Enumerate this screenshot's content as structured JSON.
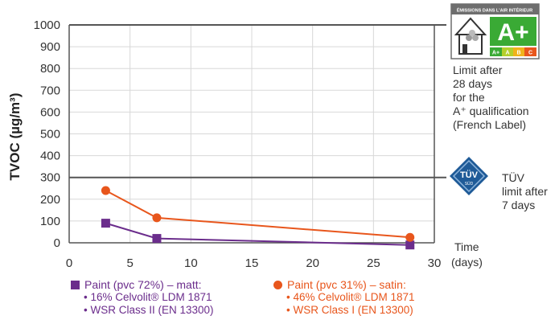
{
  "chart_data": {
    "type": "line",
    "ylabel": "TVOC (µg/m³)",
    "xlim": [
      0,
      30
    ],
    "ylim": [
      0,
      1000
    ],
    "x_ticks": [
      "0",
      "5",
      "10",
      "15",
      "20",
      "25",
      "30"
    ],
    "y_ticks": [
      "0",
      "100",
      "200",
      "300",
      "400",
      "500",
      "600",
      "700",
      "800",
      "900",
      "1000"
    ],
    "grid": true,
    "series": [
      {
        "name": "Paint (pvc 72%) – matt:",
        "marker": "square",
        "color": "#6b2d8c",
        "x": [
          3,
          7.2,
          28
        ],
        "y": [
          90,
          20,
          -10
        ]
      },
      {
        "name": "Paint (pvc 31%) – satin:",
        "marker": "circle",
        "color": "#e8561c",
        "x": [
          3,
          7.2,
          28
        ],
        "y": [
          240,
          115,
          25
        ]
      }
    ],
    "reference_lines": [
      {
        "y": 1000,
        "color": "#555555"
      },
      {
        "y": 300,
        "color": "#555555"
      }
    ]
  },
  "annotations": {
    "french_label_lines": [
      "Limit after",
      "28 days",
      "for the",
      "A⁺ qualification",
      "(French Label)"
    ],
    "tuv_lines": [
      "TÜV",
      "limit after",
      "7 days"
    ],
    "time_label": "Time",
    "time_unit": "(days)",
    "french_badge_header": "ÉMISSIONS DANS L'AIR INTÉRIEUR",
    "french_badge_grade": "A+",
    "french_badge_scale": [
      "A+",
      "A",
      "B",
      "C"
    ],
    "tuv_badge_text": "TÜV",
    "tuv_badge_sub": "SÜD"
  },
  "legend": {
    "matt": {
      "title": "Paint (pvc 72%) – matt:",
      "items": [
        "• 16% Celvolit® LDM 1871",
        "• WSR Class II (EN 13300)"
      ]
    },
    "satin": {
      "title": "Paint (pvc 31%) – satin:",
      "items": [
        "• 46% Celvolit® LDM 1871",
        "• WSR Class I (EN 13300)"
      ]
    }
  }
}
